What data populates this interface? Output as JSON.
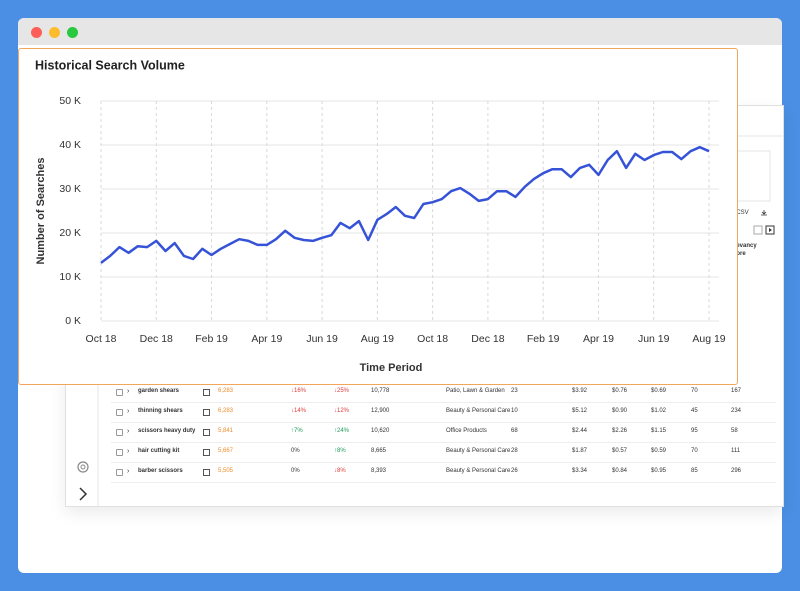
{
  "chart_data": {
    "type": "line",
    "title": "Historical Search Volume",
    "x_label": "Time Period",
    "y_label": "Number of Searches",
    "categories": [
      "Oct 18",
      null,
      null,
      null,
      null,
      null,
      "Dec 18",
      null,
      null,
      null,
      null,
      null,
      "Feb 19",
      null,
      null,
      null,
      null,
      null,
      "Apr 19",
      null,
      null,
      null,
      null,
      null,
      "Jun 19",
      null,
      null,
      null,
      null,
      null,
      "Aug 19",
      null,
      null,
      null,
      null,
      null,
      "Oct 18",
      null,
      null,
      null,
      null,
      null,
      "Dec 18",
      null,
      null,
      null,
      null,
      null,
      "Feb 19",
      null,
      null,
      null,
      null,
      null,
      "Apr 19",
      null,
      null,
      null,
      null,
      null,
      "Jun 19",
      null,
      null,
      null,
      null,
      null,
      "Aug 19"
    ],
    "values": [
      13.2,
      14.8,
      16.8,
      15.5,
      17,
      16.8,
      18.2,
      15.9,
      17.7,
      14.8,
      14.1,
      16.4,
      15,
      16.4,
      17.5,
      18.6,
      18.2,
      17.3,
      17.3,
      18.6,
      20.5,
      18.9,
      18.4,
      18.2,
      18.9,
      19.5,
      22.3,
      21.1,
      22.7,
      18.4,
      23,
      24.3,
      25.9,
      23.9,
      23.4,
      26.6,
      27,
      27.7,
      29.5,
      30.2,
      28.9,
      27.3,
      27.7,
      29.5,
      29.5,
      28.2,
      30.5,
      32.3,
      33.6,
      34.5,
      34.5,
      32.7,
      34.8,
      35.5,
      33.2,
      36.6,
      38.6,
      34.8,
      38,
      36.6,
      37.7,
      38.4,
      38.4,
      36.8,
      38.6,
      39.5,
      38.6
    ],
    "color": "#3653d8",
    "ylim": [
      0,
      50
    ],
    "yticks": [
      {
        "value": 0,
        "label": "0 K"
      },
      {
        "value": 10,
        "label": "10 K"
      },
      {
        "value": 20,
        "label": "20 K"
      },
      {
        "value": 30,
        "label": "30 K"
      },
      {
        "value": 40,
        "label": "40 K"
      },
      {
        "value": 50,
        "label": "50 K"
      }
    ],
    "grid": true
  },
  "toolbar": {
    "download": "Download CSV",
    "relevancy_header": [
      "Relevancy",
      "Score"
    ]
  },
  "table": {
    "rows": [
      [
        "garden shears",
        "6,283",
        "↓16%",
        "↓25%",
        "10,778",
        "Patio, Lawn & Garden",
        "23",
        "$3.92",
        "$0.76",
        "$0.69",
        "70",
        "167"
      ],
      [
        "thinning shears",
        "6,283",
        "↓14%",
        "↓12%",
        "12,900",
        "Beauty & Personal Care",
        "10",
        "$5.12",
        "$0.90",
        "$1.02",
        "45",
        "234"
      ],
      [
        "scissors heavy duty",
        "5,841",
        "↑7%",
        "↑24%",
        "10,620",
        "Office Products",
        "68",
        "$2.44",
        "$2.26",
        "$1.15",
        "95",
        "58"
      ],
      [
        "hair cutting kit",
        "5,667",
        "0%",
        "↑8%",
        "8,665",
        "Beauty & Personal Care",
        "28",
        "$1.87",
        "$0.57",
        "$0.59",
        "70",
        "111"
      ],
      [
        "barber scissors",
        "5,505",
        "0%",
        "↓8%",
        "8,393",
        "Beauty & Personal Care",
        "26",
        "$3.34",
        "$0.84",
        "$0.95",
        "85",
        "296"
      ]
    ]
  }
}
